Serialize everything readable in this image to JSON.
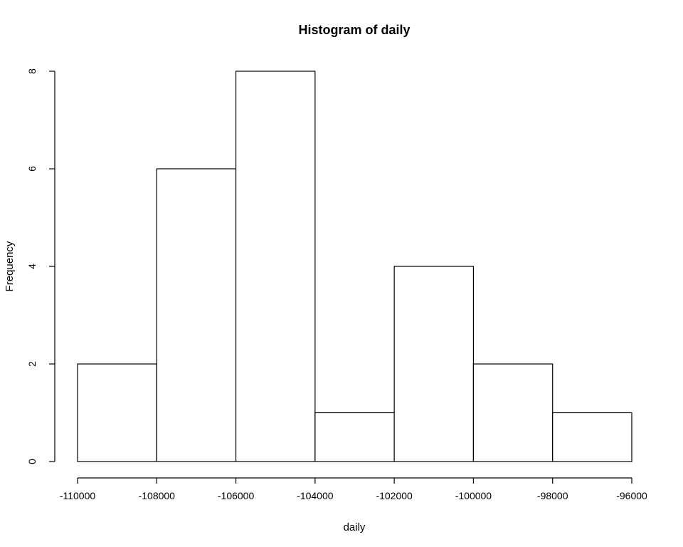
{
  "chart_data": {
    "type": "bar",
    "title": "Histogram of daily",
    "xlabel": "daily",
    "ylabel": "Frequency",
    "bins": [
      {
        "from": -110000,
        "to": -108000,
        "count": 2
      },
      {
        "from": -108000,
        "to": -106000,
        "count": 6
      },
      {
        "from": -106000,
        "to": -104000,
        "count": 8
      },
      {
        "from": -104000,
        "to": -102000,
        "count": 1
      },
      {
        "from": -102000,
        "to": -100000,
        "count": 4
      },
      {
        "from": -100000,
        "to": -98000,
        "count": 2
      },
      {
        "from": -98000,
        "to": -96000,
        "count": 1
      }
    ],
    "xlim": [
      -110000,
      -96000
    ],
    "ylim": [
      0,
      8
    ],
    "x_ticks": [
      -110000,
      -108000,
      -106000,
      -104000,
      -102000,
      -100000,
      -98000,
      -96000
    ],
    "x_tick_labels": [
      "-110000",
      "-108000",
      "-106000",
      "-104000",
      "-102000",
      "-100000",
      "-98000",
      "-96000"
    ],
    "y_ticks": [
      0,
      2,
      4,
      6,
      8
    ],
    "y_tick_labels": [
      "0",
      "2",
      "4",
      "6",
      "8"
    ],
    "grid": false,
    "bar_fill": "#ffffff",
    "bar_stroke": "#000000"
  }
}
